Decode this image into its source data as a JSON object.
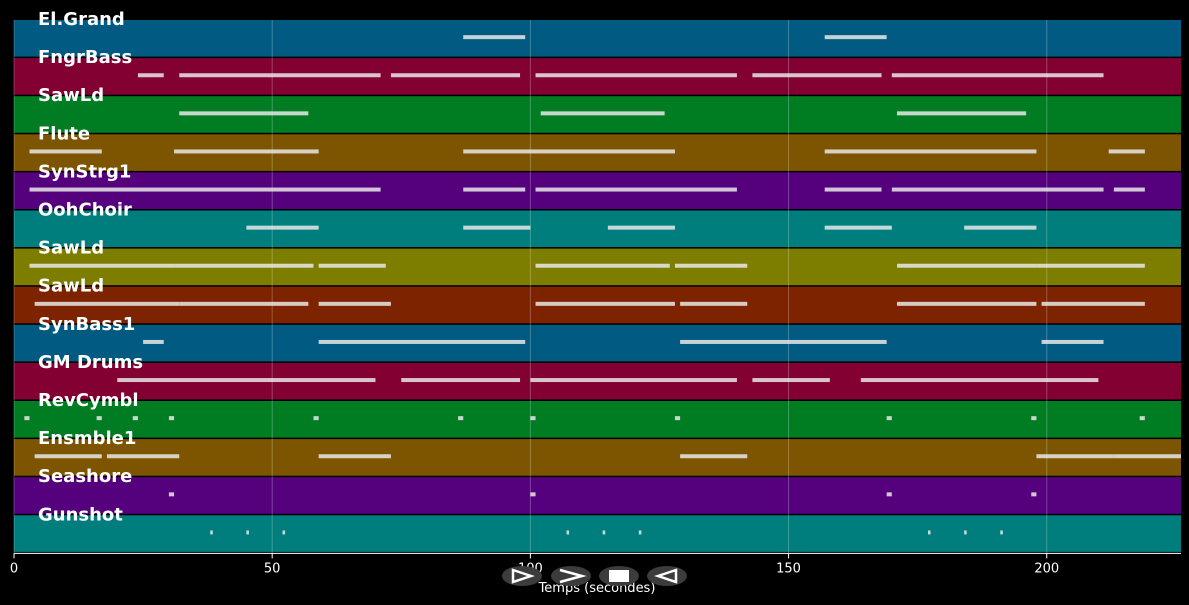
{
  "chart_data": {
    "type": "piano-roll",
    "xlabel": "Temps (secondes)",
    "xlim": [
      0,
      226
    ],
    "x_ticks": [
      0,
      50,
      100,
      150,
      200
    ],
    "grid": true,
    "tracks": [
      {
        "name": "El.Grand",
        "color": "#005a82",
        "notes": [
          [
            87,
            99
          ],
          [
            157,
            169
          ]
        ]
      },
      {
        "name": "FngrBass",
        "color": "#820032",
        "notes": [
          [
            24,
            29
          ],
          [
            32,
            71
          ],
          [
            73,
            98
          ],
          [
            101,
            140
          ],
          [
            143,
            168
          ],
          [
            170,
            211
          ]
        ]
      },
      {
        "name": "SawLd",
        "color": "#007d23",
        "notes": [
          [
            32,
            57
          ],
          [
            102,
            126
          ],
          [
            171,
            196
          ]
        ]
      },
      {
        "name": "Flute",
        "color": "#7d5500",
        "notes": [
          [
            3,
            17
          ],
          [
            31,
            59
          ],
          [
            87,
            128
          ],
          [
            157,
            198
          ],
          [
            212,
            219
          ]
        ]
      },
      {
        "name": "SynStrg1",
        "color": "#55007d",
        "notes": [
          [
            3,
            71
          ],
          [
            87,
            99
          ],
          [
            101,
            140
          ],
          [
            157,
            168
          ],
          [
            170,
            211
          ],
          [
            213,
            219
          ]
        ]
      },
      {
        "name": "OohChoir",
        "color": "#007d7d",
        "notes": [
          [
            45,
            59
          ],
          [
            87,
            100
          ],
          [
            115,
            128
          ],
          [
            157,
            170
          ],
          [
            184,
            198
          ]
        ]
      },
      {
        "name": "SawLd",
        "color": "#7d7d00",
        "notes": [
          [
            3,
            31
          ],
          [
            31,
            58
          ],
          [
            59,
            72
          ],
          [
            101,
            127
          ],
          [
            128,
            142
          ],
          [
            171,
            198
          ],
          [
            198,
            219
          ]
        ]
      },
      {
        "name": "SawLd",
        "color": "#7d2300",
        "notes": [
          [
            4,
            32
          ],
          [
            32,
            57
          ],
          [
            59,
            73
          ],
          [
            101,
            128
          ],
          [
            129,
            142
          ],
          [
            171,
            198
          ],
          [
            199,
            219
          ]
        ]
      },
      {
        "name": "SynBass1",
        "color": "#005a82",
        "notes": [
          [
            25,
            29
          ],
          [
            59,
            99
          ],
          [
            129,
            169
          ],
          [
            199,
            211
          ]
        ]
      },
      {
        "name": "GM Drums",
        "color": "#820032",
        "notes": [
          [
            20,
            70
          ],
          [
            75,
            98
          ],
          [
            100,
            140
          ],
          [
            143,
            158
          ],
          [
            164,
            210
          ]
        ]
      },
      {
        "name": "RevCymbl",
        "color": "#007d23",
        "notes": [
          [
            2,
            3
          ],
          [
            16,
            17
          ],
          [
            23,
            24
          ],
          [
            30,
            31
          ],
          [
            58,
            59
          ],
          [
            86,
            87
          ],
          [
            100,
            101
          ],
          [
            128,
            129
          ],
          [
            169,
            170
          ],
          [
            197,
            198
          ],
          [
            218,
            219
          ]
        ]
      },
      {
        "name": "Ensmble1",
        "color": "#7d5500",
        "notes": [
          [
            4,
            17
          ],
          [
            18,
            32
          ],
          [
            59,
            73
          ],
          [
            129,
            142
          ],
          [
            198,
            213
          ],
          [
            213,
            226
          ]
        ]
      },
      {
        "name": "Seashore",
        "color": "#55007d",
        "notes": [
          [
            30,
            31
          ],
          [
            100,
            101
          ],
          [
            169,
            170
          ],
          [
            197,
            198
          ]
        ]
      },
      {
        "name": "Gunshot",
        "color": "#007d7d",
        "notes": [
          [
            38,
            38.5
          ],
          [
            45,
            45.5
          ],
          [
            52,
            52.5
          ],
          [
            107,
            107.5
          ],
          [
            114,
            114.5
          ],
          [
            121,
            121.5
          ],
          [
            177,
            177.5
          ],
          [
            184,
            184.5
          ],
          [
            191,
            191.5
          ]
        ]
      }
    ]
  },
  "controls": [
    {
      "name": "play-button",
      "icon": "play-icon"
    },
    {
      "name": "fast-forward-button",
      "icon": "fast-forward-icon"
    },
    {
      "name": "stop-button",
      "icon": "stop-icon"
    },
    {
      "name": "rewind-button",
      "icon": "rewind-icon"
    }
  ]
}
